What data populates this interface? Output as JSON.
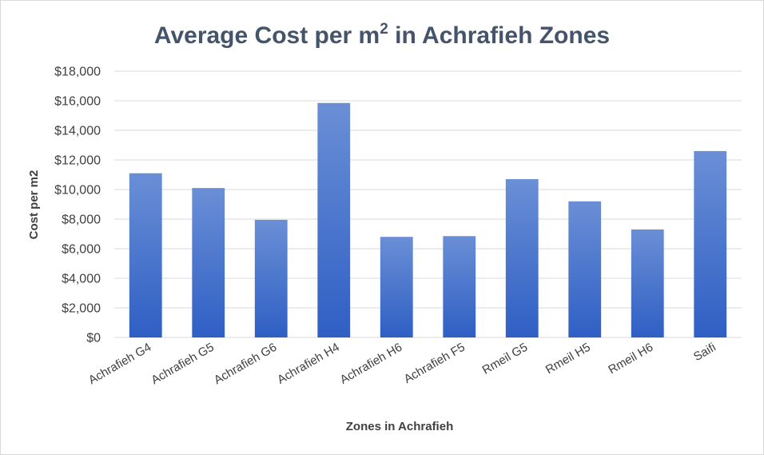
{
  "chart_data": {
    "type": "bar",
    "title": "Average Cost per m",
    "title_superscript": "2",
    "title_suffix": " in Achrafieh Zones",
    "xlabel": "Zones in Achrafieh",
    "ylabel": "Cost per m2",
    "categories": [
      "Achrafieh G4",
      "Achrafieh G5",
      "Achrafieh G6",
      "Achrafieh H4",
      "Achrafieh H6",
      "Achrafieh F5",
      "Rmeil G5",
      "Rmeil H5",
      "Rmeil H6",
      "Saifi"
    ],
    "values": [
      11100,
      10100,
      7950,
      15850,
      6800,
      6850,
      10700,
      9200,
      7300,
      12600
    ],
    "ylim": [
      0,
      18000
    ],
    "y_ticks": [
      0,
      2000,
      4000,
      6000,
      8000,
      10000,
      12000,
      14000,
      16000,
      18000
    ],
    "y_tick_labels": [
      "$0",
      "$2,000",
      "$4,000",
      "$6,000",
      "$8,000",
      "$10,000",
      "$12,000",
      "$14,000",
      "$16,000",
      "$18,000"
    ],
    "grid": true,
    "legend": "none",
    "colors": {
      "bar_top": "#6a8fd6",
      "bar_bottom": "#2f5fc4",
      "grid": "#d9d9d9",
      "title": "#44546a",
      "text": "#404040"
    }
  }
}
